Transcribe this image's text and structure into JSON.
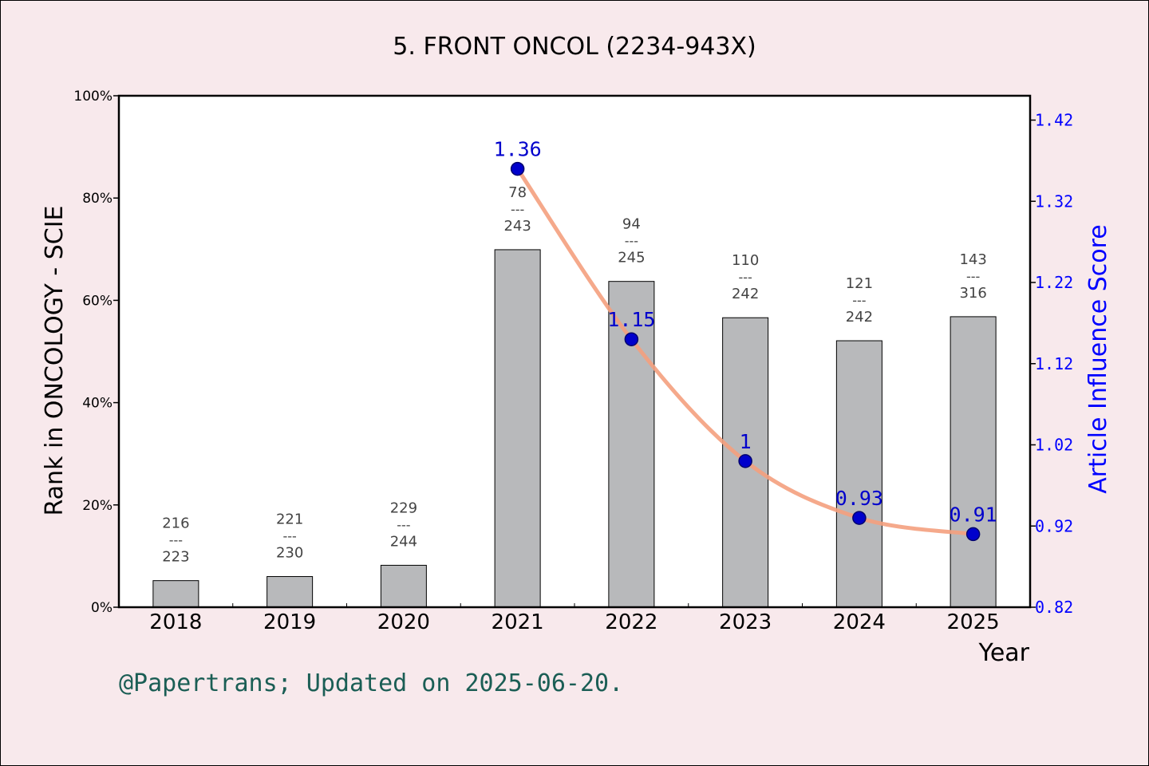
{
  "chart_data": {
    "type": "bar",
    "title": "5. FRONT ONCOL (2234-943X)",
    "xlabel": "Year",
    "ylabel": "Rank in ONCOLOGY - SCIE",
    "y2label": "Article Influence Score",
    "footer": "@Papertrans; Updated on 2025-06-20.",
    "categories": [
      "2018",
      "2019",
      "2020",
      "2021",
      "2022",
      "2023",
      "2024",
      "2025"
    ],
    "ylim": [
      0,
      100
    ],
    "yticks": [
      "0%",
      "20%",
      "40%",
      "60%",
      "80%",
      "100%"
    ],
    "y2lim": [
      0.82,
      1.45
    ],
    "y2ticks": [
      "0.82",
      "0.92",
      "1.02",
      "1.12",
      "1.22",
      "1.32",
      "1.42"
    ],
    "bars": {
      "name": "Rank",
      "values": [
        5.2,
        6.0,
        8.2,
        69.9,
        63.7,
        56.6,
        52.1,
        56.8
      ],
      "rank_labels": [
        {
          "rank": "216",
          "sep": "---",
          "total": "223"
        },
        {
          "rank": "221",
          "sep": "---",
          "total": "230"
        },
        {
          "rank": "229",
          "sep": "---",
          "total": "244"
        },
        {
          "rank": "78",
          "sep": "---",
          "total": "243"
        },
        {
          "rank": "94",
          "sep": "---",
          "total": "245"
        },
        {
          "rank": "110",
          "sep": "---",
          "total": "242"
        },
        {
          "rank": "121",
          "sep": "---",
          "total": "242"
        },
        {
          "rank": "143",
          "sep": "---",
          "total": "316"
        }
      ]
    },
    "line": {
      "name": "Article Influence Score",
      "x": [
        "2021",
        "2022",
        "2023",
        "2024",
        "2025"
      ],
      "values": [
        1.36,
        1.15,
        1.0,
        0.93,
        0.91
      ],
      "labels": [
        "1.36",
        "1.15",
        "1",
        "0.93",
        "0.91"
      ]
    },
    "grid": false,
    "legend": "none"
  },
  "colors": {
    "background": "#f8e9ec",
    "plot_background": "#ffffff",
    "bar_fill": "#b8b9bb",
    "line": "#f4a07e",
    "marker": "#0000cc",
    "right_axis": "#0000ff",
    "footer": "#1b5e55"
  }
}
